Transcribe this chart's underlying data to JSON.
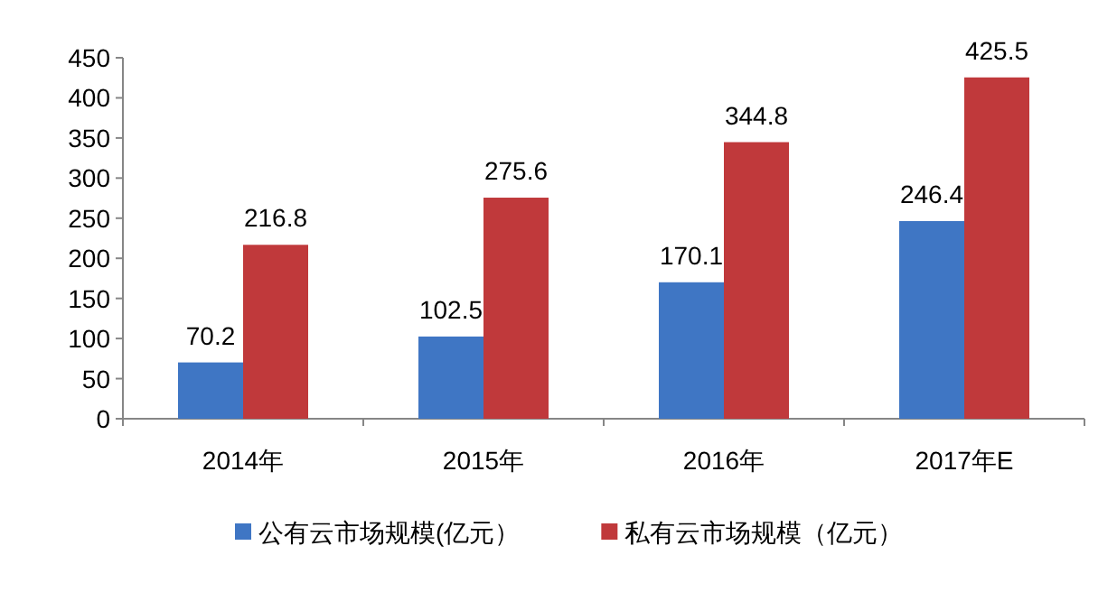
{
  "chart_data": {
    "type": "bar",
    "categories": [
      "2014年",
      "2015年",
      "2016年",
      "2017年E"
    ],
    "series": [
      {
        "name": "公有云市场规模(亿元）",
        "color": "#3f76c4",
        "values": [
          70.2,
          102.5,
          170.1,
          246.4
        ]
      },
      {
        "name": "私有云市场规模（亿元）",
        "color": "#c0393b",
        "values": [
          216.8,
          275.6,
          344.8,
          425.5
        ]
      }
    ],
    "ylim": [
      0,
      450
    ],
    "yticks": [
      0,
      50,
      100,
      150,
      200,
      250,
      300,
      350,
      400,
      450
    ],
    "data_labels": true,
    "legend": "bottom",
    "grid": false
  }
}
